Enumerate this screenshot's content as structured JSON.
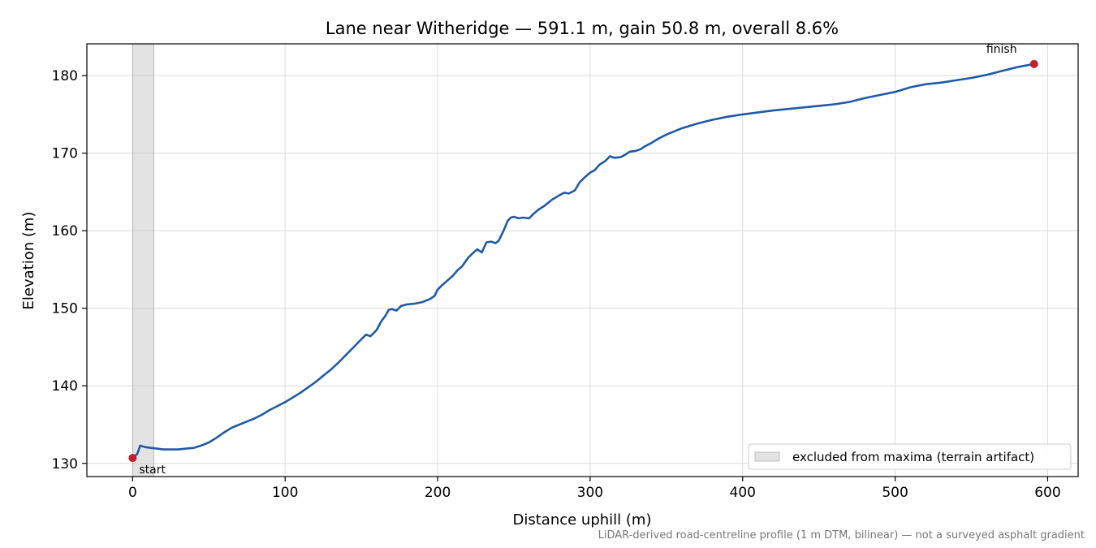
{
  "chart_data": {
    "type": "line",
    "title": "Lane near Witheridge — 591.1 m, gain 50.8 m, overall 8.6%",
    "xlabel": "Distance uphill (m)",
    "ylabel": "Elevation (m)",
    "xlim": [
      -30,
      620
    ],
    "ylim": [
      128.3,
      184.1
    ],
    "xticks": [
      0,
      100,
      200,
      300,
      400,
      500,
      600
    ],
    "yticks": [
      130,
      140,
      150,
      160,
      170,
      180
    ],
    "grid": true,
    "line_color": "#1f5aa6",
    "marker_color": "#c0202c",
    "series": [
      {
        "x": [
          0,
          3,
          5,
          8,
          12,
          16,
          20,
          25,
          30,
          35,
          40,
          45,
          50,
          55,
          60,
          65,
          70,
          75,
          80,
          85,
          90,
          95,
          100,
          105,
          110,
          115,
          120,
          125,
          130,
          135,
          140,
          145,
          150,
          153,
          156,
          160,
          163,
          166,
          168,
          170,
          173,
          176,
          180,
          185,
          190,
          195,
          198,
          200,
          203,
          206,
          210,
          213,
          216,
          220,
          223,
          226,
          229,
          232,
          235,
          238,
          240,
          243,
          246,
          248,
          250,
          253,
          256,
          260,
          263,
          266,
          270,
          275,
          280,
          283,
          286,
          290,
          293,
          296,
          300,
          303,
          306,
          310,
          313,
          316,
          320,
          323,
          326,
          330,
          333,
          336,
          340,
          345,
          350,
          360,
          370,
          380,
          390,
          400,
          420,
          440,
          460,
          470,
          480,
          490,
          500,
          510,
          520,
          530,
          540,
          550,
          560,
          570,
          580,
          591.1
        ],
        "values": [
          130.7,
          131.2,
          132.3,
          132.1,
          132.0,
          131.9,
          131.8,
          131.8,
          131.8,
          131.9,
          132.0,
          132.3,
          132.7,
          133.3,
          134.0,
          134.6,
          135.0,
          135.4,
          135.8,
          136.3,
          136.9,
          137.4,
          137.9,
          138.5,
          139.1,
          139.8,
          140.5,
          141.3,
          142.1,
          143.0,
          144.0,
          145.0,
          146.0,
          146.6,
          146.4,
          147.2,
          148.3,
          149.1,
          149.8,
          149.9,
          149.7,
          150.3,
          150.5,
          150.6,
          150.8,
          151.2,
          151.6,
          152.4,
          153.0,
          153.5,
          154.2,
          154.9,
          155.4,
          156.5,
          157.1,
          157.6,
          157.2,
          158.5,
          158.6,
          158.4,
          158.7,
          159.9,
          161.3,
          161.7,
          161.8,
          161.6,
          161.7,
          161.6,
          162.2,
          162.7,
          163.2,
          164.0,
          164.6,
          164.9,
          164.8,
          165.2,
          166.2,
          166.8,
          167.5,
          167.8,
          168.5,
          169.0,
          169.6,
          169.4,
          169.5,
          169.8,
          170.2,
          170.3,
          170.5,
          170.9,
          171.3,
          171.9,
          172.4,
          173.2,
          173.8,
          174.3,
          174.7,
          175.0,
          175.5,
          175.9,
          176.3,
          176.6,
          177.1,
          177.5,
          177.9,
          178.5,
          178.9,
          179.1,
          179.4,
          179.7,
          180.1,
          180.6,
          181.1,
          181.5
        ]
      }
    ],
    "shaded_region": {
      "x_range": [
        0,
        14
      ],
      "label": "excluded from maxima (terrain artifact)"
    },
    "annotations": [
      {
        "text": "start",
        "x": 0,
        "y": 130.7
      },
      {
        "text": "finish",
        "x": 591.1,
        "y": 181.5
      }
    ],
    "legend_position": "bottom-right"
  },
  "footnote": "LiDAR-derived road-centreline profile (1 m DTM, bilinear) — not a surveyed asphalt gradient"
}
